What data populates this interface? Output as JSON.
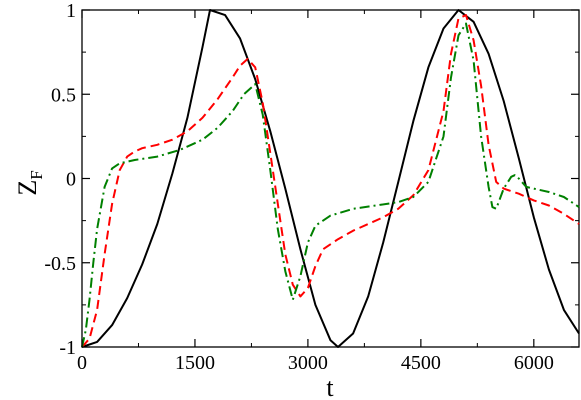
{
  "chart_data": {
    "type": "line",
    "title": "",
    "xlabel": "t",
    "ylabel": "Z",
    "ylabel_subscript": "F",
    "xlim": [
      0,
      6600
    ],
    "ylim": [
      -1,
      1
    ],
    "x_ticks": [
      0,
      1500,
      3000,
      4500,
      6000
    ],
    "x_tick_labels": [
      "0",
      "1500",
      "3000",
      "4500",
      "6000"
    ],
    "y_ticks": [
      -1,
      -0.5,
      0,
      0.5,
      1
    ],
    "y_tick_labels": [
      "-1",
      "-0.5",
      "0",
      "0.5",
      "1"
    ],
    "grid": false,
    "legend": "none",
    "series": [
      {
        "color": "#000000",
        "style": "solid",
        "points": [
          [
            0,
            -1
          ],
          [
            200,
            -0.97
          ],
          [
            400,
            -0.87
          ],
          [
            600,
            -0.71
          ],
          [
            800,
            -0.51
          ],
          [
            1000,
            -0.27
          ],
          [
            1200,
            0.03
          ],
          [
            1400,
            0.36
          ],
          [
            1600,
            0.78
          ],
          [
            1700,
            1.0
          ],
          [
            1900,
            0.97
          ],
          [
            2100,
            0.83
          ],
          [
            2300,
            0.59
          ],
          [
            2500,
            0.28
          ],
          [
            2700,
            -0.06
          ],
          [
            2900,
            -0.42
          ],
          [
            3100,
            -0.75
          ],
          [
            3300,
            -0.96
          ],
          [
            3400,
            -1.0
          ],
          [
            3600,
            -0.92
          ],
          [
            3800,
            -0.7
          ],
          [
            4000,
            -0.38
          ],
          [
            4200,
            -0.02
          ],
          [
            4400,
            0.34
          ],
          [
            4600,
            0.66
          ],
          [
            4800,
            0.89
          ],
          [
            5000,
            1.0
          ],
          [
            5200,
            0.93
          ],
          [
            5400,
            0.74
          ],
          [
            5600,
            0.46
          ],
          [
            5800,
            0.12
          ],
          [
            6000,
            -0.23
          ],
          [
            6200,
            -0.54
          ],
          [
            6400,
            -0.78
          ],
          [
            6600,
            -0.92
          ]
        ]
      },
      {
        "color": "#ff0000",
        "style": "dashed",
        "points": [
          [
            0,
            -1
          ],
          [
            100,
            -0.95
          ],
          [
            200,
            -0.78
          ],
          [
            300,
            -0.45
          ],
          [
            400,
            -0.15
          ],
          [
            500,
            0.05
          ],
          [
            600,
            0.13
          ],
          [
            700,
            0.16
          ],
          [
            800,
            0.18
          ],
          [
            1000,
            0.2
          ],
          [
            1200,
            0.23
          ],
          [
            1400,
            0.28
          ],
          [
            1600,
            0.36
          ],
          [
            1800,
            0.47
          ],
          [
            2000,
            0.6
          ],
          [
            2100,
            0.67
          ],
          [
            2200,
            0.71
          ],
          [
            2300,
            0.66
          ],
          [
            2400,
            0.45
          ],
          [
            2500,
            0.15
          ],
          [
            2600,
            -0.15
          ],
          [
            2700,
            -0.45
          ],
          [
            2800,
            -0.63
          ],
          [
            2900,
            -0.7
          ],
          [
            3000,
            -0.65
          ],
          [
            3100,
            -0.52
          ],
          [
            3200,
            -0.42
          ],
          [
            3400,
            -0.36
          ],
          [
            3600,
            -0.31
          ],
          [
            3800,
            -0.27
          ],
          [
            4000,
            -0.23
          ],
          [
            4200,
            -0.18
          ],
          [
            4400,
            -0.1
          ],
          [
            4600,
            0.05
          ],
          [
            4800,
            0.4
          ],
          [
            4900,
            0.74
          ],
          [
            5000,
            0.95
          ],
          [
            5100,
            0.97
          ],
          [
            5200,
            0.82
          ],
          [
            5300,
            0.55
          ],
          [
            5400,
            0.2
          ],
          [
            5500,
            -0.02
          ],
          [
            5600,
            -0.06
          ],
          [
            5800,
            -0.09
          ],
          [
            6000,
            -0.13
          ],
          [
            6200,
            -0.16
          ],
          [
            6400,
            -0.21
          ],
          [
            6600,
            -0.27
          ]
        ]
      },
      {
        "color": "#008000",
        "style": "dash-dot",
        "points": [
          [
            0,
            -1
          ],
          [
            50,
            -0.9
          ],
          [
            100,
            -0.72
          ],
          [
            150,
            -0.5
          ],
          [
            200,
            -0.3
          ],
          [
            300,
            -0.05
          ],
          [
            400,
            0.06
          ],
          [
            500,
            0.09
          ],
          [
            700,
            0.11
          ],
          [
            1000,
            0.13
          ],
          [
            1300,
            0.17
          ],
          [
            1600,
            0.23
          ],
          [
            1800,
            0.3
          ],
          [
            2000,
            0.4
          ],
          [
            2150,
            0.5
          ],
          [
            2300,
            0.56
          ],
          [
            2400,
            0.38
          ],
          [
            2500,
            0.05
          ],
          [
            2600,
            -0.3
          ],
          [
            2700,
            -0.55
          ],
          [
            2800,
            -0.72
          ],
          [
            2900,
            -0.58
          ],
          [
            3000,
            -0.38
          ],
          [
            3100,
            -0.28
          ],
          [
            3300,
            -0.22
          ],
          [
            3600,
            -0.18
          ],
          [
            3900,
            -0.16
          ],
          [
            4200,
            -0.14
          ],
          [
            4400,
            -0.11
          ],
          [
            4600,
            -0.02
          ],
          [
            4800,
            0.25
          ],
          [
            4900,
            0.6
          ],
          [
            5000,
            0.85
          ],
          [
            5100,
            0.92
          ],
          [
            5200,
            0.7
          ],
          [
            5300,
            0.25
          ],
          [
            5400,
            -0.05
          ],
          [
            5450,
            -0.17
          ],
          [
            5500,
            -0.18
          ],
          [
            5600,
            -0.06
          ],
          [
            5700,
            0.01
          ],
          [
            5750,
            0.02
          ],
          [
            5800,
            0.0
          ],
          [
            5900,
            -0.05
          ],
          [
            6000,
            -0.06
          ],
          [
            6200,
            -0.08
          ],
          [
            6400,
            -0.11
          ],
          [
            6600,
            -0.17
          ]
        ]
      }
    ]
  }
}
